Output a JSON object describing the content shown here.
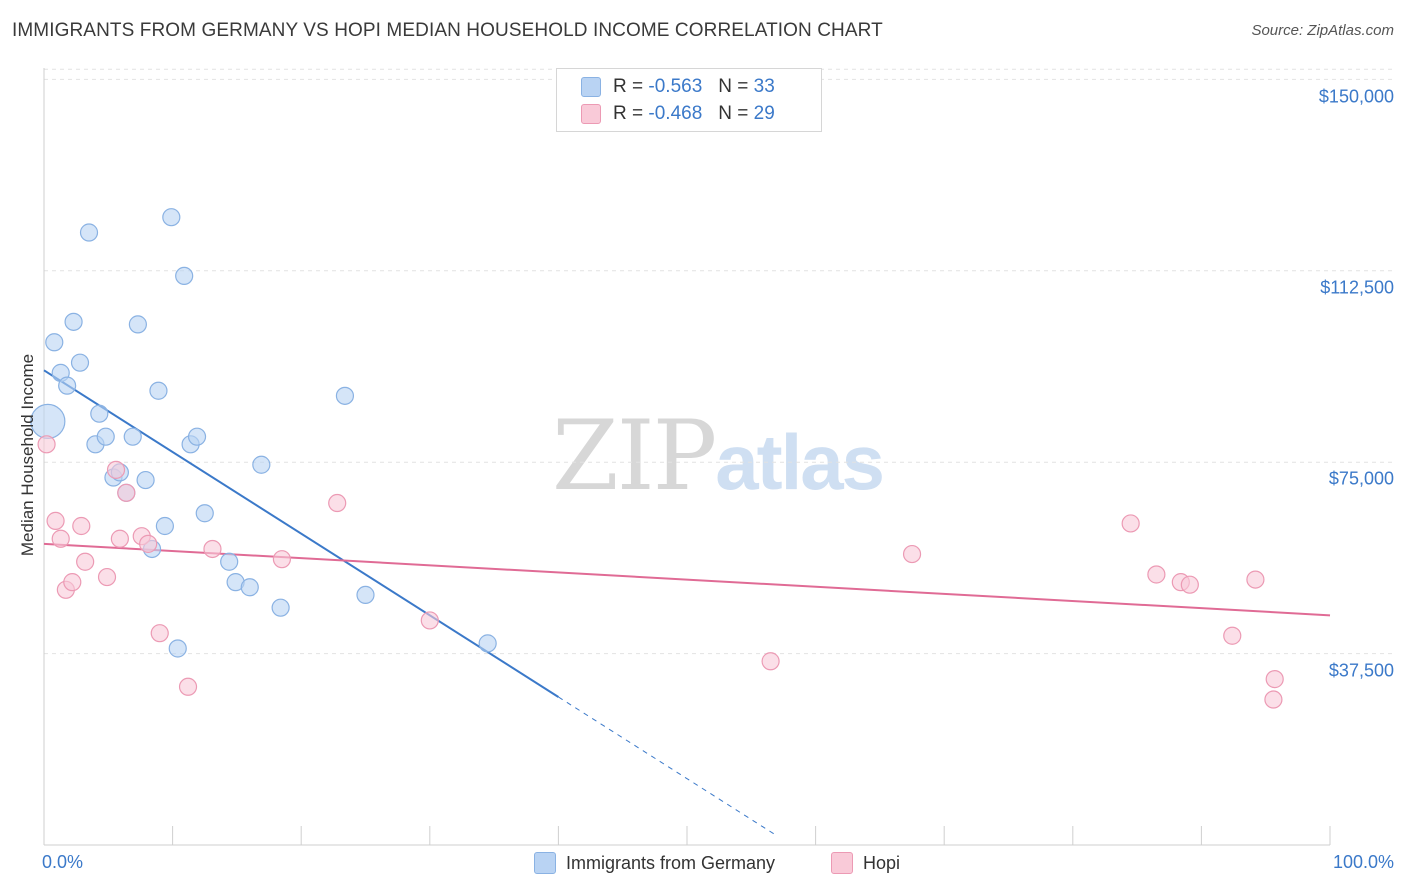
{
  "header": {
    "title": "IMMIGRANTS FROM GERMANY VS HOPI MEDIAN HOUSEHOLD INCOME CORRELATION CHART",
    "source": "Source: ZipAtlas.com"
  },
  "watermark": {
    "zip": "ZIP",
    "atlas": "atlas"
  },
  "legend_top": {
    "rows": [
      {
        "r_label": "R =",
        "r_value": "-0.563",
        "n_label": "N =",
        "n_value": "33"
      },
      {
        "r_label": "R =",
        "r_value": "-0.468",
        "n_label": "N =",
        "n_value": "29"
      }
    ]
  },
  "chart_data": {
    "type": "scatter",
    "title": "IMMIGRANTS FROM GERMANY VS HOPI MEDIAN HOUSEHOLD INCOME CORRELATION CHART",
    "xlabel": "",
    "ylabel": "Median Household Income",
    "xlim": [
      0,
      100
    ],
    "ylim": [
      0,
      157000
    ],
    "x_tick_labels": [
      "0.0%",
      "100.0%"
    ],
    "y_ticks": [
      37500,
      75000,
      112500,
      150000
    ],
    "y_tick_labels": [
      "$37,500",
      "$75,000",
      "$112,500",
      "$150,000"
    ],
    "grid": true,
    "colors": {
      "germany": "#3b79c9",
      "germany_fill": "#b9d3f3",
      "hopi": "#e06b95",
      "hopi_fill": "#f9cad8"
    },
    "series": [
      {
        "name": "Immigrants from Germany",
        "r": -0.563,
        "n": 33,
        "trend": {
          "x0": 0,
          "y0": 93000,
          "x1": 40,
          "y1": 29000,
          "dashed_to_x": 57
        },
        "points": [
          [
            0.3,
            83000,
            "large"
          ],
          [
            0.8,
            98500
          ],
          [
            1.3,
            92500
          ],
          [
            1.8,
            90000
          ],
          [
            2.3,
            102500
          ],
          [
            2.8,
            94500
          ],
          [
            3.5,
            120000
          ],
          [
            4.0,
            78500
          ],
          [
            4.3,
            84500
          ],
          [
            4.8,
            80000
          ],
          [
            5.4,
            72000
          ],
          [
            5.9,
            73000
          ],
          [
            6.4,
            69000
          ],
          [
            6.9,
            80000
          ],
          [
            7.3,
            102000
          ],
          [
            7.9,
            71500
          ],
          [
            8.4,
            58000
          ],
          [
            8.9,
            89000
          ],
          [
            9.4,
            62500
          ],
          [
            9.9,
            123000
          ],
          [
            10.4,
            38500
          ],
          [
            10.9,
            111500
          ],
          [
            11.4,
            78500
          ],
          [
            11.9,
            80000
          ],
          [
            12.5,
            65000
          ],
          [
            14.4,
            55500
          ],
          [
            14.9,
            51500
          ],
          [
            16.0,
            50500
          ],
          [
            16.9,
            74500
          ],
          [
            18.4,
            46500
          ],
          [
            23.4,
            88000
          ],
          [
            25.0,
            49000
          ],
          [
            34.5,
            39500
          ]
        ]
      },
      {
        "name": "Hopi",
        "r": -0.468,
        "n": 29,
        "trend": {
          "x0": 0,
          "y0": 59000,
          "x1": 100,
          "y1": 45000
        },
        "points": [
          [
            0.2,
            78500
          ],
          [
            0.9,
            63500
          ],
          [
            1.3,
            60000
          ],
          [
            1.7,
            50000
          ],
          [
            2.2,
            51500
          ],
          [
            2.9,
            62500
          ],
          [
            3.2,
            55500
          ],
          [
            4.9,
            52500
          ],
          [
            5.6,
            73500
          ],
          [
            5.9,
            60000
          ],
          [
            6.4,
            69000
          ],
          [
            7.6,
            60500
          ],
          [
            8.1,
            59000
          ],
          [
            9.0,
            41500
          ],
          [
            11.2,
            31000
          ],
          [
            13.1,
            58000
          ],
          [
            18.5,
            56000
          ],
          [
            22.8,
            67000
          ],
          [
            30.0,
            44000
          ],
          [
            56.5,
            36000
          ],
          [
            67.5,
            57000
          ],
          [
            84.5,
            63000
          ],
          [
            86.5,
            53000
          ],
          [
            88.4,
            51500
          ],
          [
            89.1,
            51000
          ],
          [
            92.4,
            41000
          ],
          [
            94.2,
            52000
          ],
          [
            95.7,
            32500
          ],
          [
            95.6,
            28500
          ]
        ]
      }
    ]
  },
  "legend_bottom": {
    "items": [
      {
        "label": "Immigrants from Germany"
      },
      {
        "label": "Hopi"
      }
    ]
  }
}
